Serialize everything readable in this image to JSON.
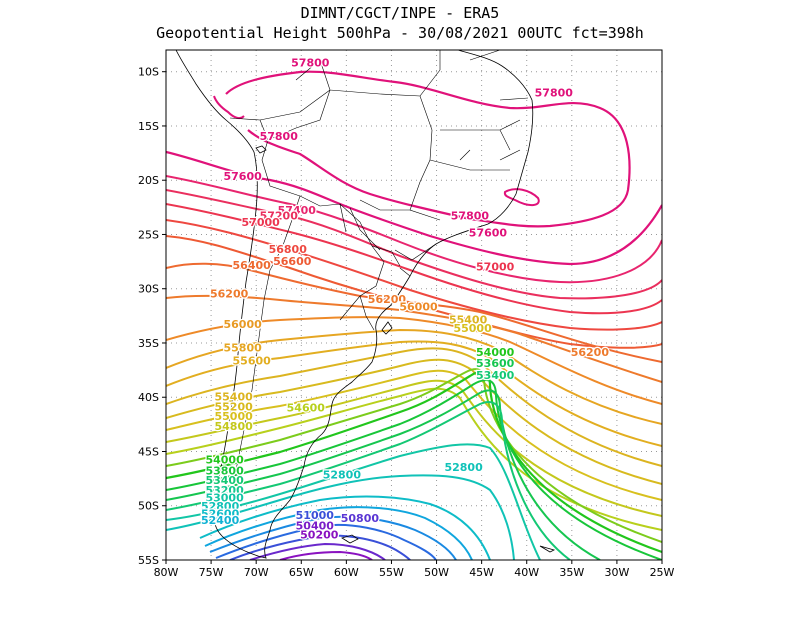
{
  "title": {
    "line1": "DIMNT/CGCT/INPE -  ERA5",
    "line2": "Geopotential Height 500hPa -  30/08/2021 00UTC fct=398h"
  },
  "map": {
    "lon_range": [
      -80,
      -25
    ],
    "lat_range": [
      -55,
      -8
    ],
    "x_ticks": [
      {
        "lon": -80,
        "label": "80W"
      },
      {
        "lon": -75,
        "label": "75W"
      },
      {
        "lon": -70,
        "label": "70W"
      },
      {
        "lon": -65,
        "label": "65W"
      },
      {
        "lon": -60,
        "label": "60W"
      },
      {
        "lon": -55,
        "label": "55W"
      },
      {
        "lon": -50,
        "label": "50W"
      },
      {
        "lon": -45,
        "label": "45W"
      },
      {
        "lon": -40,
        "label": "40W"
      },
      {
        "lon": -35,
        "label": "35W"
      },
      {
        "lon": -30,
        "label": "30W"
      },
      {
        "lon": -25,
        "label": "25W"
      }
    ],
    "y_ticks": [
      {
        "lat": -10,
        "label": "10S"
      },
      {
        "lat": -15,
        "label": "15S"
      },
      {
        "lat": -20,
        "label": "20S"
      },
      {
        "lat": -25,
        "label": "25S"
      },
      {
        "lat": -30,
        "label": "30S"
      },
      {
        "lat": -35,
        "label": "35S"
      },
      {
        "lat": -40,
        "label": "40S"
      },
      {
        "lat": -45,
        "label": "45S"
      },
      {
        "lat": -50,
        "label": "50S"
      },
      {
        "lat": -55,
        "label": "55S"
      }
    ],
    "contour_labels": [
      {
        "text": "57800",
        "lon": -64.0,
        "lat": -9.5,
        "color": "#e0127a"
      },
      {
        "text": "57800",
        "lon": -37.0,
        "lat": -12.3,
        "color": "#e0127a"
      },
      {
        "text": "57800",
        "lon": -67.5,
        "lat": -16.3,
        "color": "#e0127a"
      },
      {
        "text": "57600",
        "lon": -71.5,
        "lat": -20.0,
        "color": "#e0127a"
      },
      {
        "text": "57400",
        "lon": -65.5,
        "lat": -23.1,
        "color": "#e8256e"
      },
      {
        "text": "57200",
        "lon": -67.5,
        "lat": -23.6,
        "color": "#ea2f5e"
      },
      {
        "text": "57000",
        "lon": -69.5,
        "lat": -24.2,
        "color": "#ec3550"
      },
      {
        "text": "57800",
        "lon": -46.3,
        "lat": -23.6,
        "color": "#e0127a"
      },
      {
        "text": "57600",
        "lon": -44.3,
        "lat": -25.2,
        "color": "#e0127a"
      },
      {
        "text": "56800",
        "lon": -66.5,
        "lat": -26.7,
        "color": "#ee4840"
      },
      {
        "text": "56600",
        "lon": -66.0,
        "lat": -27.8,
        "color": "#ee5a34"
      },
      {
        "text": "56400",
        "lon": -70.5,
        "lat": -28.2,
        "color": "#ee6a30"
      },
      {
        "text": "57000",
        "lon": -43.5,
        "lat": -28.3,
        "color": "#ec3550"
      },
      {
        "text": "56200",
        "lon": -73.0,
        "lat": -30.8,
        "color": "#ee7a2c"
      },
      {
        "text": "56200",
        "lon": -55.5,
        "lat": -31.3,
        "color": "#ee7a2c"
      },
      {
        "text": "56000",
        "lon": -52.0,
        "lat": -32.0,
        "color": "#ee8a28"
      },
      {
        "text": "56000",
        "lon": -71.5,
        "lat": -33.6,
        "color": "#e89a24"
      },
      {
        "text": "55400",
        "lon": -46.5,
        "lat": -33.2,
        "color": "#dcb420"
      },
      {
        "text": "55000",
        "lon": -46.0,
        "lat": -34.0,
        "color": "#d8c01e"
      },
      {
        "text": "56200",
        "lon": -33.0,
        "lat": -36.2,
        "color": "#ee7a2c"
      },
      {
        "text": "55800",
        "lon": -71.5,
        "lat": -35.8,
        "color": "#e6a622"
      },
      {
        "text": "55600",
        "lon": -70.5,
        "lat": -37.0,
        "color": "#e2ae20"
      },
      {
        "text": "54000",
        "lon": -43.5,
        "lat": -36.2,
        "color": "#22c61c"
      },
      {
        "text": "53600",
        "lon": -43.5,
        "lat": -37.2,
        "color": "#16c650"
      },
      {
        "text": "53400",
        "lon": -43.5,
        "lat": -38.3,
        "color": "#14c874"
      },
      {
        "text": "55400",
        "lon": -72.5,
        "lat": -40.3,
        "color": "#dcb420"
      },
      {
        "text": "55200",
        "lon": -72.5,
        "lat": -41.2,
        "color": "#d8ba1e"
      },
      {
        "text": "54600",
        "lon": -64.5,
        "lat": -41.3,
        "color": "#b8d01c"
      },
      {
        "text": "55000",
        "lon": -72.5,
        "lat": -42.1,
        "color": "#d8c01e"
      },
      {
        "text": "54800",
        "lon": -72.5,
        "lat": -43.0,
        "color": "#c4c81c"
      },
      {
        "text": "54000",
        "lon": -73.5,
        "lat": -46.1,
        "color": "#22c61c"
      },
      {
        "text": "53800",
        "lon": -73.5,
        "lat": -47.1,
        "color": "#18c63a"
      },
      {
        "text": "53400",
        "lon": -73.5,
        "lat": -48.0,
        "color": "#14c874"
      },
      {
        "text": "53200",
        "lon": -73.5,
        "lat": -48.9,
        "color": "#14c890"
      },
      {
        "text": "53000",
        "lon": -73.5,
        "lat": -49.6,
        "color": "#12c6a6"
      },
      {
        "text": "52800",
        "lon": -74.0,
        "lat": -50.4,
        "color": "#10c2b8"
      },
      {
        "text": "52600",
        "lon": -74.0,
        "lat": -51.1,
        "color": "#0ebcc8"
      },
      {
        "text": "52400",
        "lon": -74.0,
        "lat": -51.7,
        "color": "#10b2d4"
      },
      {
        "text": "52800",
        "lon": -60.5,
        "lat": -47.5,
        "color": "#10c2b8"
      },
      {
        "text": "52800",
        "lon": -47.0,
        "lat": -46.8,
        "color": "#10c2b8"
      },
      {
        "text": "51000",
        "lon": -63.5,
        "lat": -51.2,
        "color": "#3a50d8"
      },
      {
        "text": "50800",
        "lon": -58.5,
        "lat": -51.5,
        "color": "#5a36d4"
      },
      {
        "text": "50400",
        "lon": -63.5,
        "lat": -52.2,
        "color": "#7a1ec8"
      },
      {
        "text": "50200",
        "lon": -63.0,
        "lat": -53.0,
        "color": "#8a12c0"
      }
    ]
  }
}
